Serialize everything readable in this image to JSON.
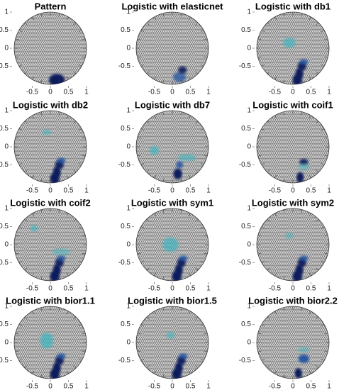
{
  "chart_data": [
    {
      "type": "mesh",
      "title": "Pattern",
      "xlim": [
        -1,
        1
      ],
      "ylim": [
        -1,
        1
      ],
      "xticks": [
        -0.5,
        0,
        0.5,
        1
      ],
      "yticks": [
        -0.5,
        0,
        0.5,
        1
      ]
    },
    {
      "type": "mesh",
      "title": "Logistic with elasticnet",
      "xlim": [
        -1,
        1
      ],
      "ylim": [
        -1,
        1
      ],
      "xticks": [
        -0.5,
        0,
        0.5,
        1
      ],
      "yticks": [
        -0.5,
        0,
        0.5,
        1
      ]
    },
    {
      "type": "mesh",
      "title": "Logistic with db1",
      "xlim": [
        -1,
        1
      ],
      "ylim": [
        -1,
        1
      ],
      "xticks": [
        -0.5,
        0,
        0.5,
        1
      ],
      "yticks": [
        -0.5,
        0,
        0.5,
        1
      ]
    },
    {
      "type": "mesh",
      "title": "Logistic with db2",
      "xlim": [
        -1,
        1
      ],
      "ylim": [
        -1,
        1
      ],
      "xticks": [
        -0.5,
        0,
        0.5,
        1
      ],
      "yticks": [
        -0.5,
        0,
        0.5,
        1
      ]
    },
    {
      "type": "mesh",
      "title": "Logistic with db7",
      "xlim": [
        -1,
        1
      ],
      "ylim": [
        -1,
        1
      ],
      "xticks": [
        -0.5,
        0,
        0.5,
        1
      ],
      "yticks": [
        -0.5,
        0,
        0.5,
        1
      ]
    },
    {
      "type": "mesh",
      "title": "Logistic with coif1",
      "xlim": [
        -1,
        1
      ],
      "ylim": [
        -1,
        1
      ],
      "xticks": [
        -0.5,
        0,
        0.5,
        1
      ],
      "yticks": [
        -0.5,
        0,
        0.5,
        1
      ]
    },
    {
      "type": "mesh",
      "title": "Logistic with coif2",
      "xlim": [
        -1,
        1
      ],
      "ylim": [
        -1,
        1
      ],
      "xticks": [
        -0.5,
        0,
        0.5,
        1
      ],
      "yticks": [
        -0.5,
        0,
        0.5,
        1
      ]
    },
    {
      "type": "mesh",
      "title": "Logistic with sym1",
      "xlim": [
        -1,
        1
      ],
      "ylim": [
        -1,
        1
      ],
      "xticks": [
        -0.5,
        0,
        0.5,
        1
      ],
      "yticks": [
        -0.5,
        0,
        0.5,
        1
      ]
    },
    {
      "type": "mesh",
      "title": "Logistic with sym2",
      "xlim": [
        -1,
        1
      ],
      "ylim": [
        -1,
        1
      ],
      "xticks": [
        -0.5,
        0,
        0.5,
        1
      ],
      "yticks": [
        -0.5,
        0,
        0.5,
        1
      ]
    },
    {
      "type": "mesh",
      "title": "Logistic with bior1.1",
      "xlim": [
        -1,
        1
      ],
      "ylim": [
        -1,
        1
      ],
      "xticks": [
        -0.5,
        0,
        0.5,
        1
      ],
      "yticks": [
        -0.5,
        0,
        0.5,
        1
      ]
    },
    {
      "type": "mesh",
      "title": "Logistic with bior1.5",
      "xlim": [
        -1,
        1
      ],
      "ylim": [
        -1,
        1
      ],
      "xticks": [
        -0.5,
        0,
        0.5,
        1
      ],
      "yticks": [
        -0.5,
        0,
        0.5,
        1
      ]
    },
    {
      "type": "mesh",
      "title": "Logistic with bior2.2",
      "xlim": [
        -1,
        1
      ],
      "ylim": [
        -1,
        1
      ],
      "xticks": [
        -0.5,
        0,
        0.5,
        1
      ],
      "yticks": [
        -0.5,
        0,
        0.5,
        1
      ]
    }
  ]
}
